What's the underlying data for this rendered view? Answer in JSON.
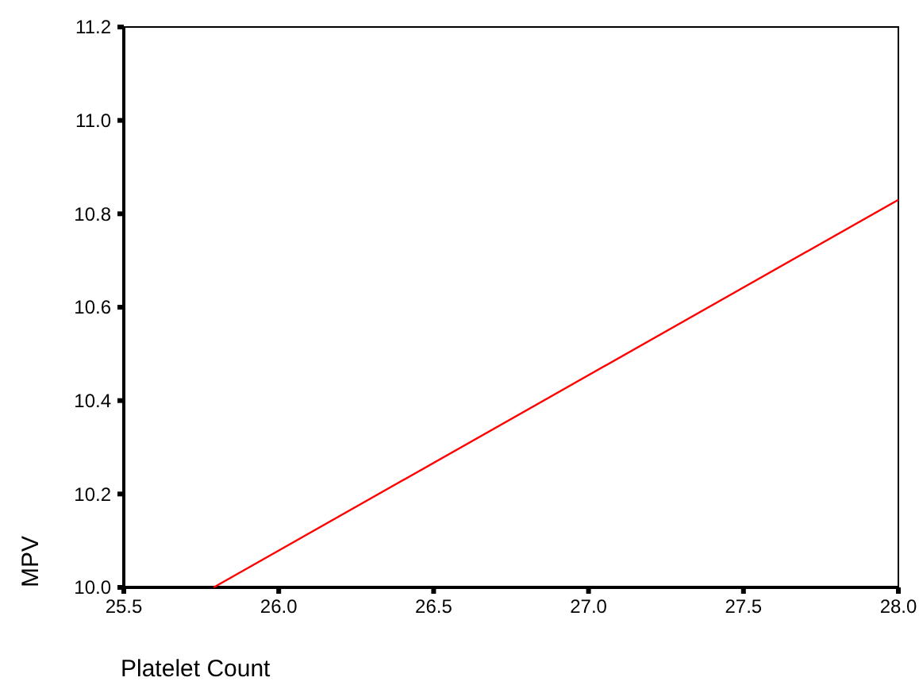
{
  "chart_data": {
    "type": "line",
    "xlabel": "Platelet Count",
    "ylabel": "MPV",
    "series": [
      {
        "color": "#ff0000",
        "x": [
          25.79,
          28.0
        ],
        "values": [
          10.0,
          10.83
        ]
      }
    ],
    "xlim": [
      25.5,
      28.0
    ],
    "xticks": [
      {
        "value": 25.5,
        "label": "25.5"
      },
      {
        "value": 26,
        "label": "26.0"
      },
      {
        "value": 26.5,
        "label": "26.5"
      },
      {
        "value": 27,
        "label": "27.0"
      },
      {
        "value": 27.5,
        "label": "27.5"
      },
      {
        "value": 28,
        "label": "28.0"
      }
    ],
    "ylim": [
      10.0,
      11.2
    ],
    "yticks": [
      {
        "value": 10,
        "label": "10.0"
      },
      {
        "value": 10.2,
        "label": "10.2"
      },
      {
        "value": 10.4,
        "label": "10.4"
      },
      {
        "value": 10.6,
        "label": "10.6"
      },
      {
        "value": 10.8,
        "label": "10.8"
      },
      {
        "value": 11,
        "label": "11.0"
      },
      {
        "value": 11.2,
        "label": "11.2"
      }
    ],
    "grid": false,
    "marker": "none",
    "line_style": "solid"
  }
}
